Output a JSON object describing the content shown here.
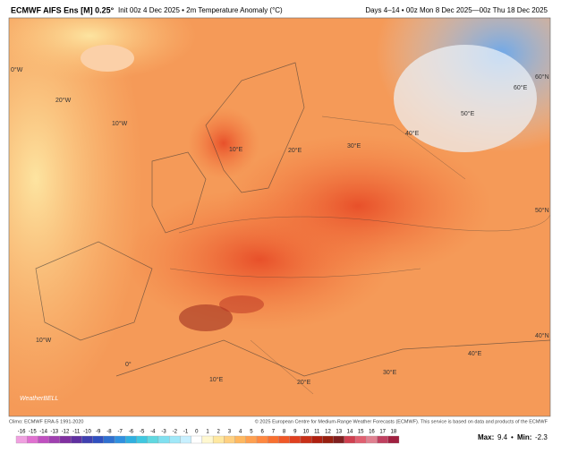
{
  "header": {
    "title": "ECMWF AIFS Ens [M] 0.25°",
    "subtitle": "Init 00z 4 Dec 2025 • 2m Temperature Anomaly (°C)",
    "period": "Days 4–14 • 00z Mon 8 Dec 2025—00z Thu 18 Dec 2025"
  },
  "map": {
    "labels": [
      "0°W",
      "20°W",
      "10°W",
      "10°E",
      "20°E",
      "30°E",
      "40°E",
      "50°E",
      "60°E",
      "60°N",
      "50°N",
      "40°N",
      "40°E",
      "30°E",
      "20°E",
      "10°E",
      "0°",
      "10°W"
    ],
    "watermark": "WeatherBELL"
  },
  "footer": {
    "climo": "Climo: ECMWF ERA-5 1991-2020",
    "credit": "© 2025 European Centre for Medium-Range Weather Forecasts (ECMWF). This service is based on data and products of the ECMWF"
  },
  "colorbar": {
    "ticks": [
      -16,
      -15,
      -14,
      -13,
      -12,
      -11,
      -10,
      -9,
      -8,
      -7,
      -6,
      -5,
      -4,
      -3,
      -2,
      -1,
      0,
      1,
      2,
      3,
      4,
      5,
      6,
      7,
      8,
      9,
      10,
      11,
      12,
      13,
      14,
      15,
      16,
      17,
      18
    ],
    "colors": [
      "#f0a0e0",
      "#e070d0",
      "#c050c0",
      "#a040b0",
      "#8030a0",
      "#6030a0",
      "#4040b0",
      "#3050c0",
      "#3070d0",
      "#3090e0",
      "#30b0e0",
      "#40c8e0",
      "#60d8e0",
      "#80e0f0",
      "#a0e8f8",
      "#c8f0ff",
      "#ffffff",
      "#fff8d0",
      "#ffe8a0",
      "#ffd080",
      "#ffb860",
      "#ffa050",
      "#ff8840",
      "#f87030",
      "#f05828",
      "#e04020",
      "#c83018",
      "#b02010",
      "#982010",
      "#802020",
      "#d04050",
      "#e06070",
      "#e08090",
      "#c04060",
      "#a02040"
    ]
  },
  "stats": {
    "max_label": "Max:",
    "max": 9.4,
    "separator": "•",
    "min_label": "Min:",
    "min": -2.3
  }
}
